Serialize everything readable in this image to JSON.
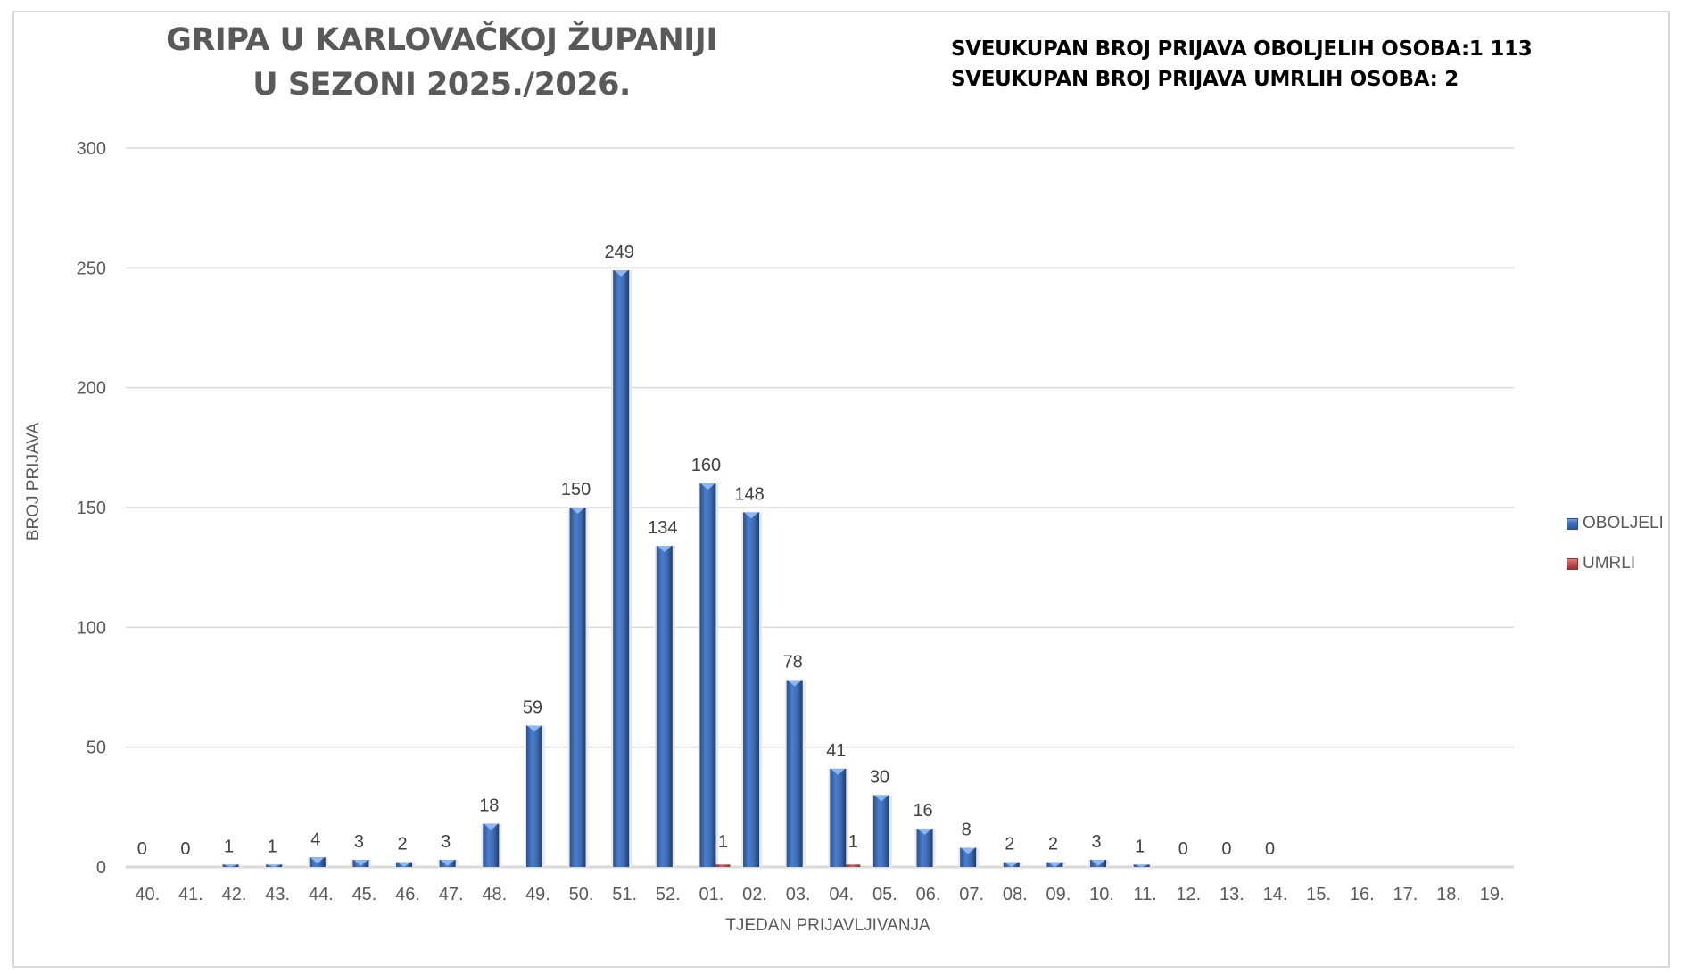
{
  "title": {
    "line1": "GRIPA U KARLOVAČKOJ ŽUPANIJI",
    "line2": "U SEZONI 2025./2026."
  },
  "totals": {
    "sick": "SVEUKUPAN BROJ PRIJAVA OBOLJELIH OSOBA:1 113",
    "dead": "SVEUKUPAN BROJ PRIJAVA UMRLIH OSOBA: 2"
  },
  "axes": {
    "ylabel": "BROJ PRIJAVA",
    "xlabel": "TJEDAN PRIJAVLJIVANJA"
  },
  "legend": {
    "items": [
      {
        "label": "OBOLJELI",
        "color": "#4472C4"
      },
      {
        "label": "UMRLI",
        "color": "#C0504D"
      }
    ]
  },
  "colors": {
    "sick_bar": "#3E6DB5",
    "sick_bar_dark": "#2F5597",
    "dead_bar": "#C0504D",
    "grid": "#d9d9d9",
    "text": "#595959"
  },
  "chart_data": {
    "type": "bar",
    "title": "GRIPA U KARLOVAČKOJ ŽUPANIJI U SEZONI 2025./2026.",
    "subtitle": "SVEUKUPAN BROJ PRIJAVA OBOLJELIH OSOBA:1 113 / SVEUKUPAN BROJ PRIJAVA UMRLIH OSOBA: 2",
    "xlabel": "TJEDAN PRIJAVLJIVANJA",
    "ylabel": "BROJ PRIJAVA",
    "ylim": [
      0,
      300
    ],
    "yticks": [
      0,
      50,
      100,
      150,
      200,
      250,
      300
    ],
    "grid": true,
    "legend_position": "right",
    "categories": [
      "40.",
      "41.",
      "42.",
      "43.",
      "44.",
      "45.",
      "46.",
      "47.",
      "48.",
      "49.",
      "50.",
      "51.",
      "52.",
      "01.",
      "02.",
      "03.",
      "04.",
      "05.",
      "06.",
      "07.",
      "08.",
      "09.",
      "10.",
      "11.",
      "12.",
      "13.",
      "14.",
      "15.",
      "16.",
      "17.",
      "18.",
      "19."
    ],
    "series": [
      {
        "name": "OBOLJELI",
        "values": [
          0,
          0,
          1,
          1,
          4,
          3,
          2,
          3,
          18,
          59,
          150,
          249,
          134,
          160,
          148,
          78,
          41,
          30,
          16,
          8,
          2,
          2,
          3,
          1,
          0,
          0,
          0,
          null,
          null,
          null,
          null,
          null
        ]
      },
      {
        "name": "UMRLI",
        "values": [
          null,
          null,
          null,
          null,
          null,
          null,
          null,
          null,
          null,
          null,
          null,
          null,
          null,
          1,
          null,
          null,
          1,
          null,
          null,
          null,
          null,
          null,
          null,
          null,
          null,
          null,
          null,
          null,
          null,
          null,
          null,
          null
        ]
      }
    ]
  }
}
